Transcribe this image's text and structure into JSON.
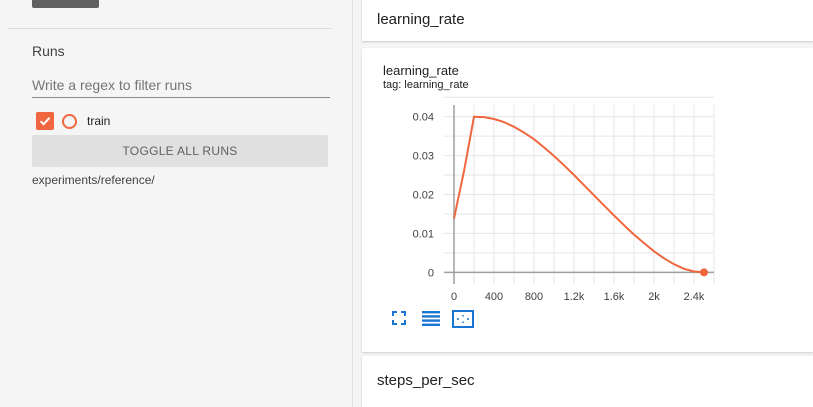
{
  "sidebar": {
    "runs_title": "Runs",
    "filter_placeholder": "Write a regex to filter runs",
    "runs": [
      {
        "name": "train",
        "checked": true,
        "color": "#f0663e"
      }
    ],
    "toggle_all_label": "TOGGLE ALL RUNS",
    "experiment_path": "experiments/reference/"
  },
  "main": {
    "section_header": "learning_rate",
    "chart_card": {
      "title": "learning_rate",
      "tag": "tag: learning_rate",
      "toolbar_icons": [
        "fullscreen-icon",
        "lines-icon",
        "fit-domain-icon"
      ]
    },
    "next_section_header": "steps_per_sec"
  },
  "colors": {
    "accent": "#f0663e",
    "sidebar_bg": "#f5f5f5",
    "card_bg": "#ffffff"
  },
  "chart_data": {
    "type": "line",
    "title": "learning_rate",
    "subtitle": "tag: learning_rate",
    "xlim": [
      -100,
      2600
    ],
    "ylim": [
      -0.003,
      0.043
    ],
    "x_ticks": [
      0,
      400,
      800,
      1200,
      1600,
      2000,
      2400
    ],
    "x_tick_labels": [
      "0",
      "400",
      "800",
      "1.2k",
      "1.6k",
      "2k",
      "2.4k"
    ],
    "y_ticks": [
      0,
      0.01,
      0.02,
      0.03,
      0.04
    ],
    "y_tick_labels": [
      "0",
      "0.01",
      "0.02",
      "0.03",
      "0.04"
    ],
    "grid": true,
    "series": [
      {
        "color": "#f0663e",
        "x": [
          0,
          100,
          200,
          300,
          400,
          500,
          600,
          700,
          800,
          900,
          1000,
          1100,
          1200,
          1300,
          1400,
          1500,
          1600,
          1700,
          1800,
          1900,
          2000,
          2100,
          2200,
          2300,
          2400,
          2500
        ],
        "y": [
          0.0138,
          0.026,
          0.04,
          0.0399,
          0.0394,
          0.0386,
          0.0374,
          0.0359,
          0.0342,
          0.0321,
          0.0299,
          0.0275,
          0.025,
          0.0224,
          0.0198,
          0.0172,
          0.0146,
          0.0121,
          0.0097,
          0.0075,
          0.0054,
          0.0036,
          0.0021,
          0.0009,
          0.0002,
          0.0
        ]
      }
    ]
  }
}
